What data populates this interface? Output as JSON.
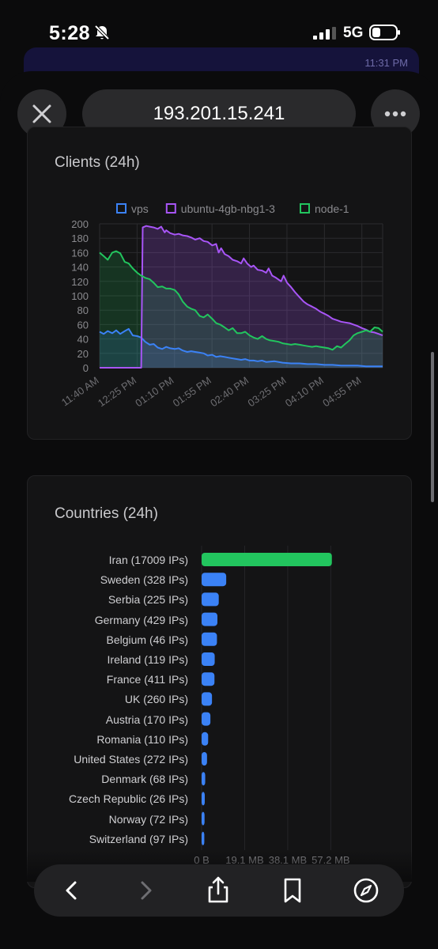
{
  "status": {
    "time": "5:28",
    "network": "5G"
  },
  "background_time": "11:31 PM",
  "url": "193.201.15.241",
  "clients_card": {
    "title": "Clients (24h)"
  },
  "countries_card": {
    "title": "Countries (24h)"
  },
  "chart_data": [
    {
      "type": "area",
      "title": "Clients (24h)",
      "legend": "top",
      "grid": true,
      "ylim": [
        0,
        200
      ],
      "y_ticks": [
        "200",
        "180",
        "160",
        "140",
        "120",
        "100",
        "80",
        "60",
        "40",
        "20",
        "0"
      ],
      "x_ticks": [
        "11:40 AM",
        "12:25 PM",
        "01:10 PM",
        "01:55 PM",
        "02:40 PM",
        "03:25 PM",
        "04:10 PM",
        "04:55 PM"
      ],
      "x_tick_hours": [
        11.667,
        12.417,
        13.167,
        13.917,
        14.667,
        15.417,
        16.167,
        16.917
      ],
      "xlim_hours": [
        11.667,
        17.333
      ],
      "series": [
        {
          "name": "vps",
          "color": "#3b82f6",
          "points": [
            [
              11.667,
              50
            ],
            [
              11.75,
              47
            ],
            [
              11.83,
              51
            ],
            [
              11.92,
              48
            ],
            [
              12.0,
              52
            ],
            [
              12.08,
              47
            ],
            [
              12.17,
              51
            ],
            [
              12.25,
              54
            ],
            [
              12.33,
              45
            ],
            [
              12.42,
              44
            ],
            [
              12.5,
              42
            ],
            [
              12.58,
              36
            ],
            [
              12.67,
              32
            ],
            [
              12.75,
              33
            ],
            [
              12.83,
              28
            ],
            [
              12.92,
              26
            ],
            [
              13.0,
              29
            ],
            [
              13.08,
              27
            ],
            [
              13.17,
              26
            ],
            [
              13.25,
              27
            ],
            [
              13.33,
              24
            ],
            [
              13.42,
              22
            ],
            [
              13.5,
              23
            ],
            [
              13.58,
              22
            ],
            [
              13.67,
              21
            ],
            [
              13.75,
              20
            ],
            [
              13.83,
              17
            ],
            [
              13.92,
              18
            ],
            [
              14.0,
              15
            ],
            [
              14.08,
              16
            ],
            [
              14.17,
              15
            ],
            [
              14.25,
              14
            ],
            [
              14.33,
              13
            ],
            [
              14.42,
              12
            ],
            [
              14.5,
              11
            ],
            [
              14.58,
              12
            ],
            [
              14.67,
              10
            ],
            [
              14.75,
              10
            ],
            [
              14.83,
              9
            ],
            [
              14.92,
              10
            ],
            [
              15.0,
              8
            ],
            [
              15.17,
              9
            ],
            [
              15.33,
              7
            ],
            [
              15.5,
              6
            ],
            [
              15.67,
              6
            ],
            [
              15.83,
              5
            ],
            [
              16.0,
              5
            ],
            [
              16.17,
              4
            ],
            [
              16.33,
              4
            ],
            [
              16.5,
              3
            ],
            [
              16.67,
              3
            ],
            [
              16.83,
              3
            ],
            [
              17.0,
              2
            ],
            [
              17.17,
              2
            ],
            [
              17.333,
              2
            ]
          ]
        },
        {
          "name": "ubuntu-4gb-nbg1-3",
          "color": "#a855f7",
          "points": [
            [
              11.667,
              0
            ],
            [
              12.5,
              0
            ],
            [
              12.53,
              195
            ],
            [
              12.6,
              197
            ],
            [
              12.67,
              196
            ],
            [
              12.75,
              195
            ],
            [
              12.83,
              193
            ],
            [
              12.9,
              196
            ],
            [
              12.97,
              188
            ],
            [
              13.0,
              191
            ],
            [
              13.08,
              187
            ],
            [
              13.17,
              185
            ],
            [
              13.25,
              186
            ],
            [
              13.33,
              184
            ],
            [
              13.42,
              183
            ],
            [
              13.5,
              181
            ],
            [
              13.58,
              178
            ],
            [
              13.67,
              180
            ],
            [
              13.75,
              176
            ],
            [
              13.83,
              175
            ],
            [
              13.92,
              170
            ],
            [
              14.0,
              172
            ],
            [
              14.05,
              160
            ],
            [
              14.1,
              166
            ],
            [
              14.17,
              158
            ],
            [
              14.25,
              155
            ],
            [
              14.33,
              150
            ],
            [
              14.42,
              148
            ],
            [
              14.5,
              145
            ],
            [
              14.55,
              152
            ],
            [
              14.62,
              145
            ],
            [
              14.7,
              140
            ],
            [
              14.75,
              142
            ],
            [
              14.83,
              136
            ],
            [
              14.92,
              135
            ],
            [
              15.0,
              132
            ],
            [
              15.05,
              138
            ],
            [
              15.12,
              128
            ],
            [
              15.2,
              125
            ],
            [
              15.3,
              120
            ],
            [
              15.35,
              128
            ],
            [
              15.42,
              118
            ],
            [
              15.5,
              112
            ],
            [
              15.58,
              105
            ],
            [
              15.67,
              98
            ],
            [
              15.75,
              92
            ],
            [
              15.83,
              88
            ],
            [
              15.92,
              85
            ],
            [
              16.0,
              82
            ],
            [
              16.08,
              78
            ],
            [
              16.17,
              75
            ],
            [
              16.25,
              72
            ],
            [
              16.33,
              68
            ],
            [
              16.42,
              66
            ],
            [
              16.5,
              64
            ],
            [
              16.58,
              63
            ],
            [
              16.67,
              62
            ],
            [
              16.75,
              60
            ],
            [
              16.83,
              58
            ],
            [
              16.92,
              55
            ],
            [
              17.0,
              53
            ],
            [
              17.08,
              50
            ],
            [
              17.17,
              49
            ],
            [
              17.25,
              47
            ],
            [
              17.333,
              45
            ]
          ]
        },
        {
          "name": "node-1",
          "color": "#22c55e",
          "points": [
            [
              11.667,
              160
            ],
            [
              11.75,
              155
            ],
            [
              11.83,
              150
            ],
            [
              11.92,
              160
            ],
            [
              12.0,
              162
            ],
            [
              12.08,
              159
            ],
            [
              12.17,
              147
            ],
            [
              12.25,
              145
            ],
            [
              12.33,
              138
            ],
            [
              12.42,
              132
            ],
            [
              12.5,
              128
            ],
            [
              12.58,
              125
            ],
            [
              12.67,
              123
            ],
            [
              12.75,
              118
            ],
            [
              12.83,
              112
            ],
            [
              12.92,
              113
            ],
            [
              13.0,
              110
            ],
            [
              13.08,
              110
            ],
            [
              13.17,
              108
            ],
            [
              13.25,
              102
            ],
            [
              13.33,
              92
            ],
            [
              13.42,
              85
            ],
            [
              13.5,
              82
            ],
            [
              13.58,
              80
            ],
            [
              13.67,
              72
            ],
            [
              13.75,
              70
            ],
            [
              13.83,
              74
            ],
            [
              13.92,
              68
            ],
            [
              14.0,
              62
            ],
            [
              14.08,
              60
            ],
            [
              14.17,
              56
            ],
            [
              14.25,
              52
            ],
            [
              14.33,
              55
            ],
            [
              14.42,
              48
            ],
            [
              14.5,
              48
            ],
            [
              14.58,
              50
            ],
            [
              14.67,
              45
            ],
            [
              14.75,
              42
            ],
            [
              14.83,
              40
            ],
            [
              14.92,
              44
            ],
            [
              15.0,
              40
            ],
            [
              15.08,
              38
            ],
            [
              15.17,
              37
            ],
            [
              15.25,
              36
            ],
            [
              15.33,
              34
            ],
            [
              15.42,
              33
            ],
            [
              15.5,
              32
            ],
            [
              15.58,
              33
            ],
            [
              15.67,
              32
            ],
            [
              15.75,
              31
            ],
            [
              15.83,
              30
            ],
            [
              15.92,
              29
            ],
            [
              16.0,
              30
            ],
            [
              16.08,
              29
            ],
            [
              16.17,
              28
            ],
            [
              16.25,
              27
            ],
            [
              16.33,
              25
            ],
            [
              16.42,
              30
            ],
            [
              16.5,
              28
            ],
            [
              16.58,
              33
            ],
            [
              16.67,
              38
            ],
            [
              16.75,
              45
            ],
            [
              16.83,
              48
            ],
            [
              16.92,
              50
            ],
            [
              17.0,
              52
            ],
            [
              17.08,
              50
            ],
            [
              17.17,
              56
            ],
            [
              17.25,
              55
            ],
            [
              17.333,
              50
            ]
          ]
        }
      ]
    },
    {
      "type": "bar",
      "title": "Countries (24h)",
      "orientation": "horizontal",
      "categories": [
        "Iran (17009 IPs)",
        "Sweden (328 IPs)",
        "Serbia (225 IPs)",
        "Germany (429 IPs)",
        "Belgium (46 IPs)",
        "Ireland (119 IPs)",
        "France (411 IPs)",
        "UK (260 IPs)",
        "Austria (170 IPs)",
        "Romania (110 IPs)",
        "United States (272 IPs)",
        "Denmark (68 IPs)",
        "Czech Republic (26 IPs)",
        "Norway (72 IPs)",
        "Switzerland (97 IPs)"
      ],
      "values_mb": [
        57.7,
        10.9,
        7.6,
        7.0,
        6.8,
        5.8,
        5.7,
        4.6,
        3.9,
        2.9,
        2.4,
        1.6,
        1.4,
        1.3,
        1.2
      ],
      "colors": [
        "#22c55e",
        "#3b82f6",
        "#3b82f6",
        "#3b82f6",
        "#3b82f6",
        "#3b82f6",
        "#3b82f6",
        "#3b82f6",
        "#3b82f6",
        "#3b82f6",
        "#3b82f6",
        "#3b82f6",
        "#3b82f6",
        "#3b82f6",
        "#3b82f6"
      ],
      "x_ticks": [
        "0 B",
        "19.1 MB",
        "38.1 MB",
        "57.2 MB"
      ],
      "x_tick_values_mb": [
        0,
        19.07,
        38.15,
        57.22
      ],
      "xlim_mb": [
        0,
        85.8
      ]
    }
  ]
}
